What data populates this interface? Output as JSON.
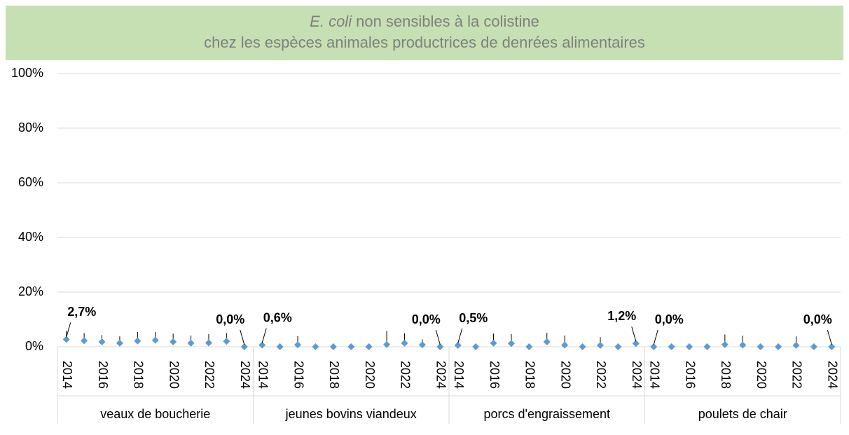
{
  "chart_data": {
    "type": "dot",
    "title": {
      "italic": "E. coli",
      "line1": "non sensibles à la colistine",
      "line2": "chez les espèces animales productrices de denrées alimentaires"
    },
    "groups": [
      "veaux de boucherie",
      "jeunes bovins viandeux",
      "porcs d'engraissement",
      "poulets de chair"
    ],
    "categories": [
      "2014",
      null,
      "2016",
      null,
      "2018",
      null,
      "2020",
      null,
      "2022",
      null,
      "2024",
      "2014",
      null,
      "2016",
      null,
      "2018",
      null,
      "2020",
      null,
      "2022",
      null,
      "2024",
      "2014",
      null,
      "2016",
      null,
      "2018",
      null,
      "2020",
      null,
      "2022",
      null,
      "2024",
      "2014",
      null,
      "2016",
      null,
      "2018",
      null,
      "2020",
      null,
      "2022",
      null,
      "2024"
    ],
    "series": [
      {
        "color": "#5b9bd5",
        "values": [
          2.7,
          2.2,
          1.8,
          1.3,
          2.1,
          2.4,
          1.8,
          1.3,
          1.4,
          2.0,
          0.0,
          0.6,
          0.0,
          0.7,
          0.0,
          0.0,
          0.0,
          0.0,
          0.8,
          1.3,
          0.7,
          0.0,
          0.5,
          0.0,
          1.3,
          1.2,
          0.0,
          1.8,
          0.6,
          0.0,
          0.5,
          0.0,
          1.2,
          0.0,
          0.0,
          0.0,
          0.0,
          0.8,
          0.6,
          0.0,
          0.0,
          0.5,
          0.0,
          0.0
        ],
        "errors": [
          3.2,
          2.8,
          2.5,
          2.5,
          3.3,
          3.0,
          3.0,
          2.8,
          3.2,
          3.0,
          null,
          null,
          null,
          3.2,
          null,
          null,
          null,
          null,
          5.0,
          3.6,
          2.0,
          null,
          null,
          null,
          3.5,
          3.5,
          null,
          3.3,
          3.5,
          null,
          3.0,
          null,
          null,
          null,
          null,
          null,
          null,
          3.7,
          3.4,
          null,
          null,
          3.3,
          null,
          null
        ],
        "value_labels": [
          "2,7%",
          null,
          null,
          null,
          null,
          null,
          null,
          null,
          null,
          null,
          "0,0%",
          "0,6%",
          null,
          null,
          null,
          null,
          null,
          null,
          null,
          null,
          null,
          "0,0%",
          "0,5%",
          null,
          null,
          null,
          null,
          null,
          null,
          null,
          null,
          null,
          "1,2%",
          "0,0%",
          null,
          null,
          null,
          null,
          null,
          null,
          null,
          null,
          null,
          "0,0%"
        ]
      }
    ],
    "ylim": [
      0,
      100
    ],
    "yticks": [
      {
        "value": 0,
        "label": "0%"
      },
      {
        "value": 20,
        "label": "20%"
      },
      {
        "value": 40,
        "label": "40%"
      },
      {
        "value": 60,
        "label": "60%"
      },
      {
        "value": 80,
        "label": "80%"
      },
      {
        "value": 100,
        "label": "100%"
      }
    ],
    "grid": true
  }
}
